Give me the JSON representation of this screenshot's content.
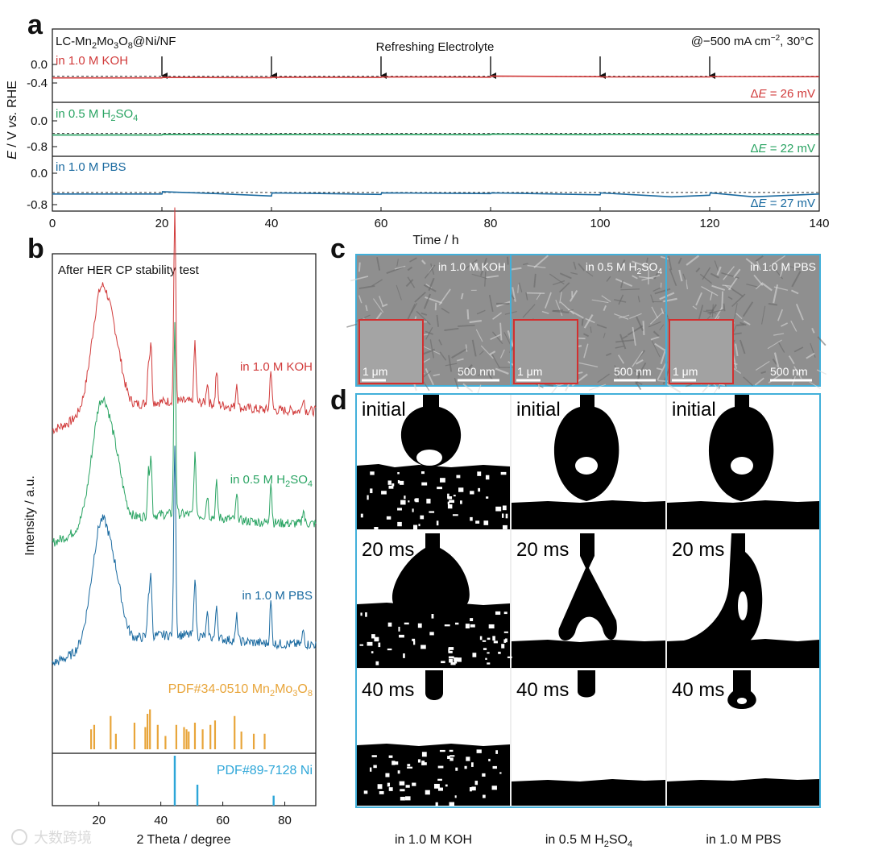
{
  "panel_labels": [
    "a",
    "b",
    "c",
    "d"
  ],
  "watermark": "大数跨境",
  "chart_data": [
    {
      "type": "line",
      "panel": "a",
      "xlabel": "Time / h",
      "ylabel": "E / V vs. RHE",
      "xlim": [
        0,
        140
      ],
      "xticks": [
        0,
        20,
        40,
        60,
        80,
        100,
        120,
        140
      ],
      "title_left": "LC-Mn2Mo3O8@Ni/NF",
      "title_right": "@−500 mA cm−2, 30°C",
      "annotation": "Refreshing Electrolyte",
      "arrow_times": [
        20,
        40,
        60,
        80,
        100,
        120
      ],
      "subplots": [
        {
          "name": "in 1.0 M KOH",
          "color": "#d13b3b",
          "yticks": [
            "0.0",
            "-0.4"
          ],
          "ylim": [
            -0.8,
            0.3
          ],
          "delta": "ΔE = 26 mV",
          "x": [
            0,
            20,
            20.1,
            40,
            40.1,
            60,
            60.1,
            80,
            80.1,
            100,
            100.1,
            120,
            120.1,
            140
          ],
          "y": [
            -0.29,
            -0.29,
            -0.28,
            -0.285,
            -0.275,
            -0.28,
            -0.27,
            -0.275,
            -0.25,
            -0.265,
            -0.27,
            -0.27,
            -0.26,
            -0.265
          ]
        },
        {
          "name": "in 0.5 M H2SO4",
          "color": "#2aa463",
          "yticks": [
            "0.0",
            "-0.8"
          ],
          "ylim": [
            -1.3,
            0.6
          ],
          "delta": "ΔE = 22 mV",
          "x": [
            0,
            20,
            20.1,
            40,
            40.1,
            60,
            60.1,
            80,
            80.1,
            100,
            100.1,
            120,
            120.1,
            140
          ],
          "y": [
            -0.44,
            -0.44,
            -0.42,
            -0.43,
            -0.42,
            -0.43,
            -0.42,
            -0.43,
            -0.41,
            -0.43,
            -0.42,
            -0.43,
            -0.42,
            -0.43
          ]
        },
        {
          "name": "in 1.0 M PBS",
          "color": "#1a6aa0",
          "yticks": [
            "0.0",
            "-0.8"
          ],
          "ylim": [
            -1.3,
            0.6
          ],
          "delta": "ΔE = 27 mV",
          "x": [
            0,
            20,
            20.1,
            30,
            40,
            40.1,
            50,
            60,
            60.1,
            80,
            80.1,
            100,
            100.1,
            113,
            120,
            120.1,
            128,
            140
          ],
          "y": [
            -0.53,
            -0.53,
            -0.47,
            -0.52,
            -0.58,
            -0.5,
            -0.52,
            -0.54,
            -0.5,
            -0.52,
            -0.5,
            -0.55,
            -0.5,
            -0.6,
            -0.56,
            -0.5,
            -0.6,
            -0.53
          ]
        }
      ]
    },
    {
      "type": "line",
      "panel": "b",
      "title": "After HER CP stability test",
      "xlabel": "2 Theta / degree",
      "ylabel": "Intensity / a.u.",
      "xlim": [
        5,
        90
      ],
      "xticks": [
        20,
        40,
        60,
        80
      ],
      "series": [
        {
          "name": "in 1.0 M KOH",
          "color": "#d13b3b"
        },
        {
          "name": "in 0.5 M H2SO4",
          "color": "#2aa463"
        },
        {
          "name": "in 1.0 M PBS",
          "color": "#1a6aa0"
        }
      ],
      "reference_mn": {
        "name": "PDF#34-0510 Mn2Mo3O8",
        "color": "#e8a53a",
        "positions": [
          17.5,
          18.5,
          23.8,
          25.5,
          31.5,
          35.0,
          35.7,
          36.5,
          39.0,
          41.5,
          45.0,
          47.5,
          48.3,
          49.0,
          51.0,
          53.5,
          56.0,
          57.5,
          63.8,
          66.0,
          70.0,
          73.5
        ],
        "heights": [
          0.45,
          0.55,
          0.75,
          0.35,
          0.6,
          0.5,
          0.8,
          0.9,
          0.55,
          0.3,
          0.55,
          0.5,
          0.45,
          0.4,
          0.6,
          0.45,
          0.55,
          0.65,
          0.75,
          0.4,
          0.35,
          0.35
        ]
      },
      "reference_ni": {
        "name": "PDF#89-7128 Ni",
        "color": "#2da6d8",
        "positions": [
          44.5,
          51.8,
          76.4
        ],
        "heights": [
          1.0,
          0.42,
          0.2
        ]
      }
    }
  ],
  "sem": {
    "panels": [
      {
        "label": "in 1.0 M KOH",
        "scale_inset": "1 μm",
        "scale_main": "500 nm"
      },
      {
        "label": "in 0.5 M H2SO4",
        "scale_inset": "1 μm",
        "scale_main": "500 nm"
      },
      {
        "label": "in 1.0 M PBS",
        "scale_inset": "1 μm",
        "scale_main": "500 nm"
      }
    ]
  },
  "contact_angle": {
    "rows": [
      "initial",
      "20 ms",
      "40 ms"
    ],
    "columns": [
      "in 1.0 M KOH",
      "in 0.5 M H2SO4",
      "in 1.0 M PBS"
    ]
  }
}
